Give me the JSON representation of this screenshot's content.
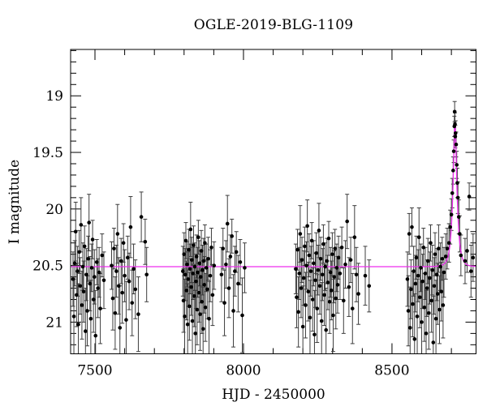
{
  "title": "OGLE-2019-BLG-1109",
  "chart_data": {
    "type": "scatter",
    "title": "OGLE-2019-BLG-1109",
    "xlabel": "HJD - 2450000",
    "ylabel": "I magnitude",
    "xlim": [
      7418,
      8783
    ],
    "ylim_top": 18.59,
    "ylim_bottom": 21.28,
    "y_axis_inverted": true,
    "grid": false,
    "legend": null,
    "x_major_ticks": [
      7500,
      8000,
      8500
    ],
    "x_major_tick_labels": [
      "7500",
      "8000",
      "8500"
    ],
    "x_minor_step": 100,
    "y_major_ticks": [
      19,
      19.5,
      20,
      20.5,
      21
    ],
    "y_major_tick_labels": [
      "19",
      "19.5",
      "20",
      "20.5",
      "21"
    ],
    "y_minor_step": 0.1,
    "colors": {
      "model_curve": "#ee2dee",
      "data_points": "#000000",
      "error_bars": "#3d3d3d",
      "frame": "#000000",
      "background": "#ffffff"
    },
    "model_curve": {
      "kind": "paczynski_microlensing",
      "t0": 8712,
      "tE": 13.5,
      "u0": 0.32,
      "baseline_mag": 20.51,
      "peak_mag": 19.23
    },
    "points_format": [
      "hjd_minus_2450000",
      "i_magnitude",
      "error"
    ],
    "points": [
      [
        7426,
        20.62,
        0.24
      ],
      [
        7429,
        20.95,
        0.33
      ],
      [
        7432,
        20.48,
        0.2
      ],
      [
        7435,
        20.2,
        0.26
      ],
      [
        7438,
        20.76,
        0.28
      ],
      [
        7441,
        20.55,
        0.22
      ],
      [
        7444,
        21.02,
        0.36
      ],
      [
        7447,
        20.38,
        0.19
      ],
      [
        7450,
        20.68,
        0.25
      ],
      [
        7453,
        20.14,
        0.24
      ],
      [
        7456,
        20.85,
        0.3
      ],
      [
        7459,
        20.51,
        0.21
      ],
      [
        7462,
        20.73,
        0.27
      ],
      [
        7465,
        20.33,
        0.18
      ],
      [
        7468,
        21.08,
        0.38
      ],
      [
        7471,
        20.58,
        0.23
      ],
      [
        7474,
        20.9,
        0.31
      ],
      [
        7477,
        20.44,
        0.2
      ],
      [
        7480,
        20.12,
        0.25
      ],
      [
        7483,
        20.66,
        0.24
      ],
      [
        7486,
        20.97,
        0.34
      ],
      [
        7489,
        20.52,
        0.21
      ],
      [
        7492,
        20.27,
        0.17
      ],
      [
        7495,
        20.8,
        0.29
      ],
      [
        7498,
        20.6,
        0.24
      ],
      [
        7502,
        21.12,
        0.4
      ],
      [
        7506,
        20.47,
        0.2
      ],
      [
        7510,
        20.7,
        0.26
      ],
      [
        7514,
        20.56,
        0.22
      ],
      [
        7518,
        20.88,
        0.31
      ],
      [
        7524,
        20.41,
        0.19
      ],
      [
        7530,
        20.63,
        0.25
      ],
      [
        7556,
        20.5,
        0.21
      ],
      [
        7560,
        20.79,
        0.28
      ],
      [
        7564,
        20.35,
        0.18
      ],
      [
        7568,
        20.92,
        0.32
      ],
      [
        7572,
        20.55,
        0.23
      ],
      [
        7576,
        20.22,
        0.26
      ],
      [
        7580,
        20.68,
        0.25
      ],
      [
        7584,
        21.05,
        0.37
      ],
      [
        7588,
        20.46,
        0.2
      ],
      [
        7592,
        20.74,
        0.27
      ],
      [
        7596,
        20.3,
        0.17
      ],
      [
        7600,
        20.59,
        0.23
      ],
      [
        7605,
        20.98,
        0.34
      ],
      [
        7610,
        20.43,
        0.19
      ],
      [
        7615,
        20.64,
        0.25
      ],
      [
        7620,
        20.16,
        0.27
      ],
      [
        7625,
        20.83,
        0.29
      ],
      [
        7630,
        20.53,
        0.22
      ],
      [
        7636,
        20.71,
        0.26
      ],
      [
        7646,
        20.93,
        0.33
      ],
      [
        7656,
        20.07,
        0.22
      ],
      [
        7669,
        20.29,
        0.2
      ],
      [
        7674,
        20.58,
        0.24
      ],
      [
        7796,
        20.55,
        0.22
      ],
      [
        7798,
        20.81,
        0.28
      ],
      [
        7800,
        20.4,
        0.19
      ],
      [
        7802,
        20.95,
        0.33
      ],
      [
        7804,
        20.58,
        0.23
      ],
      [
        7806,
        20.28,
        0.16
      ],
      [
        7808,
        20.72,
        0.26
      ],
      [
        7810,
        20.49,
        0.2
      ],
      [
        7812,
        21.02,
        0.36
      ],
      [
        7814,
        20.62,
        0.24
      ],
      [
        7816,
        20.36,
        0.18
      ],
      [
        7818,
        20.86,
        0.3
      ],
      [
        7820,
        20.53,
        0.22
      ],
      [
        7822,
        20.18,
        0.24
      ],
      [
        7824,
        20.69,
        0.25
      ],
      [
        7826,
        20.45,
        0.2
      ],
      [
        7828,
        20.99,
        0.34
      ],
      [
        7830,
        20.57,
        0.23
      ],
      [
        7832,
        20.32,
        0.17
      ],
      [
        7834,
        20.77,
        0.27
      ],
      [
        7836,
        20.51,
        0.21
      ],
      [
        7838,
        21.1,
        0.38
      ],
      [
        7840,
        20.64,
        0.24
      ],
      [
        7842,
        20.42,
        0.19
      ],
      [
        7844,
        20.89,
        0.31
      ],
      [
        7846,
        20.56,
        0.22
      ],
      [
        7848,
        20.25,
        0.15
      ],
      [
        7850,
        20.74,
        0.26
      ],
      [
        7852,
        20.48,
        0.2
      ],
      [
        7854,
        20.93,
        0.32
      ],
      [
        7856,
        20.6,
        0.23
      ],
      [
        7858,
        20.37,
        0.18
      ],
      [
        7860,
        20.82,
        0.28
      ],
      [
        7862,
        20.54,
        0.22
      ],
      [
        7864,
        21.06,
        0.37
      ],
      [
        7866,
        20.46,
        0.2
      ],
      [
        7868,
        20.67,
        0.25
      ],
      [
        7870,
        20.3,
        0.16
      ],
      [
        7872,
        20.87,
        0.3
      ],
      [
        7875,
        20.52,
        0.21
      ],
      [
        7878,
        20.71,
        0.26
      ],
      [
        7881,
        20.44,
        0.19
      ],
      [
        7884,
        20.97,
        0.33
      ],
      [
        7888,
        20.59,
        0.23
      ],
      [
        7892,
        20.34,
        0.17
      ],
      [
        7896,
        20.76,
        0.27
      ],
      [
        7901,
        20.5,
        0.21
      ],
      [
        7926,
        20.58,
        0.24
      ],
      [
        7931,
        20.35,
        0.18
      ],
      [
        7936,
        20.83,
        0.29
      ],
      [
        7941,
        20.49,
        0.21
      ],
      [
        7946,
        20.13,
        0.25
      ],
      [
        7951,
        20.7,
        0.26
      ],
      [
        7956,
        20.42,
        0.19
      ],
      [
        7961,
        20.24,
        0.15
      ],
      [
        7966,
        20.9,
        0.32
      ],
      [
        7971,
        20.55,
        0.22
      ],
      [
        7976,
        20.38,
        0.18
      ],
      [
        7982,
        20.66,
        0.25
      ],
      [
        7989,
        20.47,
        0.2
      ],
      [
        7996,
        20.94,
        0.33
      ],
      [
        8004,
        20.52,
        0.22
      ],
      [
        8176,
        20.53,
        0.22
      ],
      [
        8179,
        20.78,
        0.27
      ],
      [
        8182,
        20.36,
        0.18
      ],
      [
        8185,
        20.91,
        0.31
      ],
      [
        8188,
        20.57,
        0.23
      ],
      [
        8191,
        20.22,
        0.25
      ],
      [
        8194,
        20.7,
        0.26
      ],
      [
        8197,
        20.45,
        0.2
      ],
      [
        8200,
        21.04,
        0.36
      ],
      [
        8203,
        20.61,
        0.24
      ],
      [
        8206,
        20.33,
        0.17
      ],
      [
        8209,
        20.85,
        0.29
      ],
      [
        8212,
        20.5,
        0.21
      ],
      [
        8215,
        20.15,
        0.23
      ],
      [
        8218,
        20.73,
        0.26
      ],
      [
        8221,
        20.41,
        0.19
      ],
      [
        8224,
        20.96,
        0.33
      ],
      [
        8227,
        20.55,
        0.22
      ],
      [
        8230,
        20.28,
        0.16
      ],
      [
        8233,
        20.8,
        0.28
      ],
      [
        8236,
        20.48,
        0.2
      ],
      [
        8239,
        21.11,
        0.39
      ],
      [
        8242,
        20.63,
        0.24
      ],
      [
        8245,
        20.39,
        0.18
      ],
      [
        8248,
        20.88,
        0.3
      ],
      [
        8251,
        20.54,
        0.22
      ],
      [
        8254,
        20.19,
        0.24
      ],
      [
        8257,
        20.68,
        0.25
      ],
      [
        8260,
        20.44,
        0.19
      ],
      [
        8263,
        20.99,
        0.34
      ],
      [
        8266,
        20.58,
        0.23
      ],
      [
        8269,
        20.31,
        0.17
      ],
      [
        8272,
        20.76,
        0.27
      ],
      [
        8275,
        20.51,
        0.21
      ],
      [
        8278,
        21.07,
        0.37
      ],
      [
        8281,
        20.46,
        0.2
      ],
      [
        8284,
        20.65,
        0.24
      ],
      [
        8287,
        20.26,
        0.15
      ],
      [
        8290,
        20.82,
        0.28
      ],
      [
        8293,
        20.56,
        0.22
      ],
      [
        8296,
        20.72,
        0.26
      ],
      [
        8299,
        20.4,
        0.19
      ],
      [
        8302,
        20.94,
        0.32
      ],
      [
        8305,
        20.6,
        0.23
      ],
      [
        8308,
        20.35,
        0.17
      ],
      [
        8311,
        20.79,
        0.27
      ],
      [
        8314,
        20.52,
        0.21
      ],
      [
        8317,
        20.67,
        0.25
      ],
      [
        8320,
        20.43,
        0.19
      ],
      [
        8325,
        20.57,
        0.23
      ],
      [
        8331,
        20.34,
        0.18
      ],
      [
        8337,
        20.81,
        0.29
      ],
      [
        8343,
        20.49,
        0.21
      ],
      [
        8349,
        20.11,
        0.24
      ],
      [
        8355,
        20.69,
        0.26
      ],
      [
        8361,
        20.45,
        0.2
      ],
      [
        8367,
        20.88,
        0.31
      ],
      [
        8374,
        20.25,
        0.28
      ],
      [
        8380,
        20.58,
        0.24
      ],
      [
        8387,
        20.75,
        0.27
      ],
      [
        8410,
        20.59,
        0.26
      ],
      [
        8423,
        20.68,
        0.23
      ],
      [
        8552,
        20.62,
        0.24
      ],
      [
        8555,
        20.9,
        0.31
      ],
      [
        8558,
        20.22,
        0.18
      ],
      [
        8561,
        21.05,
        0.36
      ],
      [
        8564,
        20.71,
        0.26
      ],
      [
        8567,
        20.16,
        0.17
      ],
      [
        8570,
        20.84,
        0.29
      ],
      [
        8573,
        20.55,
        0.22
      ],
      [
        8576,
        21.15,
        0.4
      ],
      [
        8579,
        20.66,
        0.25
      ],
      [
        8582,
        20.43,
        0.19
      ],
      [
        8585,
        20.95,
        0.33
      ],
      [
        8588,
        20.59,
        0.23
      ],
      [
        8591,
        20.25,
        0.26
      ],
      [
        8594,
        20.78,
        0.27
      ],
      [
        8597,
        20.52,
        0.21
      ],
      [
        8600,
        21.0,
        0.35
      ],
      [
        8603,
        20.64,
        0.24
      ],
      [
        8606,
        20.34,
        0.17
      ],
      [
        8609,
        20.87,
        0.3
      ],
      [
        8612,
        20.57,
        0.23
      ],
      [
        8615,
        21.1,
        0.38
      ],
      [
        8618,
        20.7,
        0.25
      ],
      [
        8621,
        20.46,
        0.2
      ],
      [
        8624,
        20.92,
        0.32
      ],
      [
        8627,
        20.61,
        0.23
      ],
      [
        8630,
        20.3,
        0.16
      ],
      [
        8633,
        20.81,
        0.28
      ],
      [
        8636,
        20.54,
        0.22
      ],
      [
        8639,
        21.18,
        0.41
      ],
      [
        8642,
        20.68,
        0.25
      ],
      [
        8645,
        20.4,
        0.19
      ],
      [
        8648,
        20.97,
        0.34
      ],
      [
        8651,
        20.58,
        0.23
      ],
      [
        8654,
        20.75,
        0.27
      ],
      [
        8657,
        20.35,
        0.21
      ],
      [
        8660,
        20.89,
        0.3
      ],
      [
        8663,
        20.51,
        0.21
      ],
      [
        8666,
        20.73,
        0.26
      ],
      [
        8669,
        20.44,
        0.19
      ],
      [
        8672,
        20.85,
        0.29
      ],
      [
        8675,
        20.56,
        0.22
      ],
      [
        8681,
        20.42,
        0.2
      ],
      [
        8686,
        20.35,
        0.18
      ],
      [
        8692,
        20.3,
        0.17
      ],
      [
        8696,
        20.16,
        0.15
      ],
      [
        8700,
        20.05,
        0.14
      ],
      [
        8703,
        19.86,
        0.13
      ],
      [
        8706,
        19.66,
        0.12
      ],
      [
        8708,
        19.49,
        0.1
      ],
      [
        8710,
        19.27,
        0.09
      ],
      [
        8711,
        19.14,
        0.09
      ],
      [
        8712,
        19.25,
        0.1
      ],
      [
        8713,
        19.36,
        0.1
      ],
      [
        8714,
        19.33,
        0.11
      ],
      [
        8716,
        19.43,
        0.11
      ],
      [
        8718,
        19.61,
        0.12
      ],
      [
        8720,
        19.77,
        0.13
      ],
      [
        8722,
        19.9,
        0.14
      ],
      [
        8725,
        20.07,
        0.15
      ],
      [
        8728,
        20.22,
        0.16
      ],
      [
        8732,
        20.41,
        0.18
      ],
      [
        8746,
        20.46,
        0.2
      ],
      [
        8753,
        20.37,
        0.19
      ],
      [
        8760,
        19.89,
        0.12
      ],
      [
        8766,
        20.55,
        0.23
      ],
      [
        8773,
        20.43,
        0.21
      ]
    ]
  }
}
